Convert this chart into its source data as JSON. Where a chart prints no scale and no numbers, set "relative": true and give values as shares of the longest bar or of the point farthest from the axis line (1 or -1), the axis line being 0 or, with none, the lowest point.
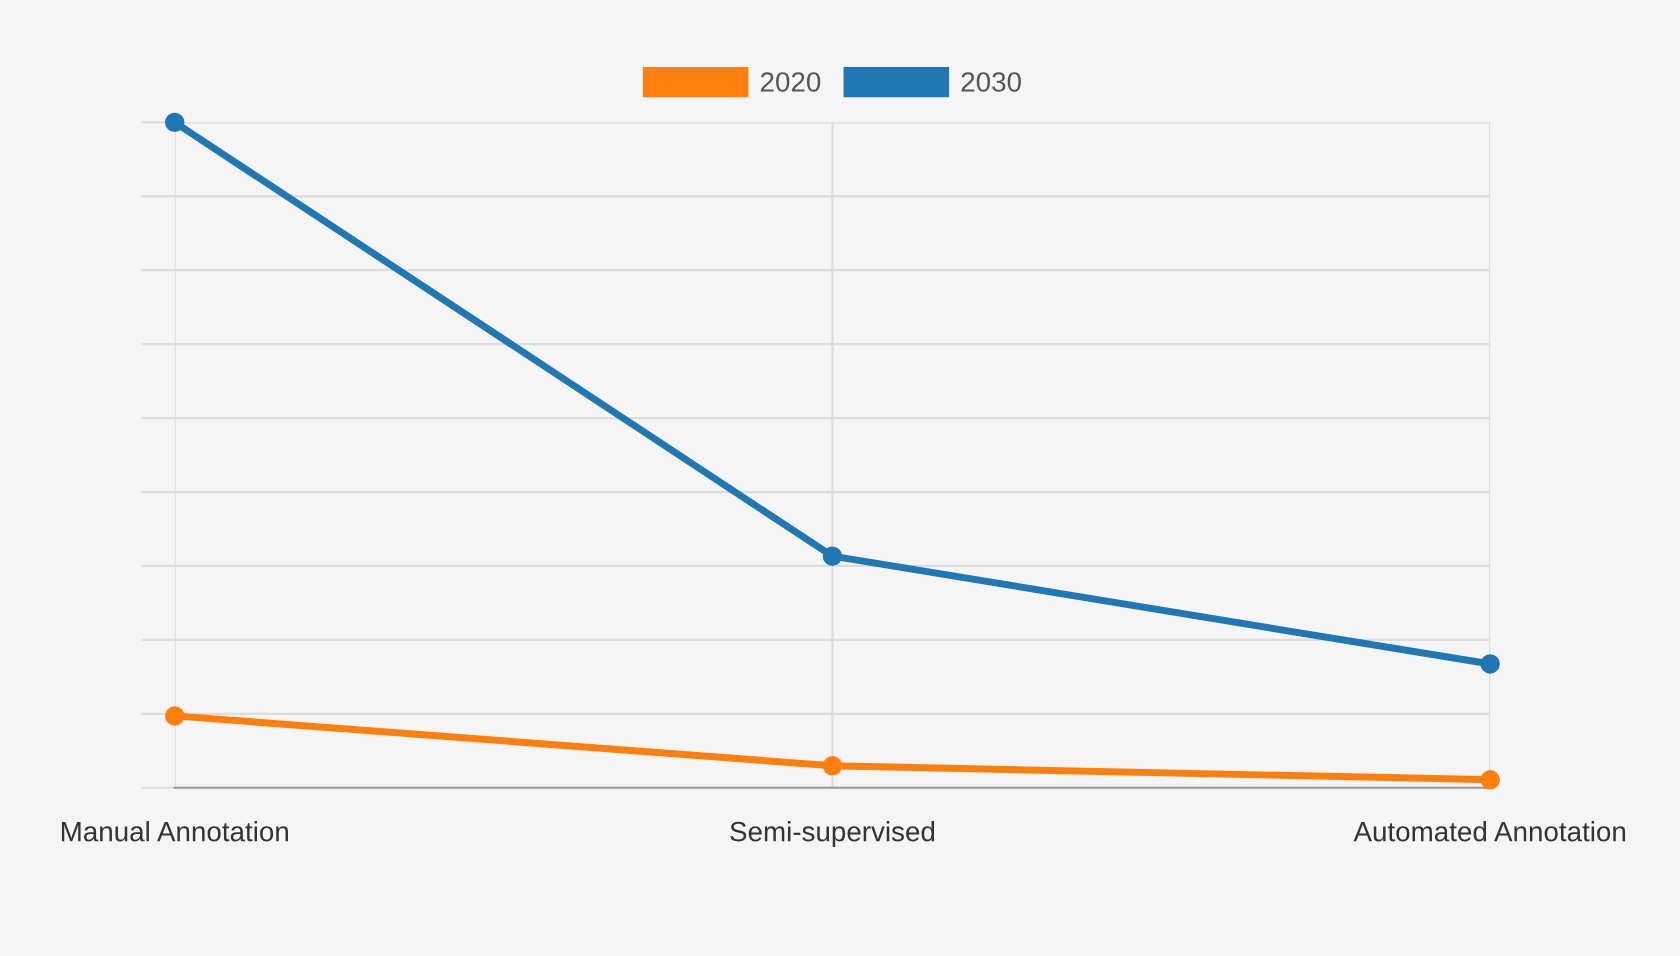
{
  "chart_data": {
    "type": "line",
    "relative": true,
    "categories": [
      "Manual Annotation",
      "Semi-supervised",
      "Automated Annotation"
    ],
    "series": [
      {
        "name": "2020",
        "color": "#ff7f0e",
        "values": [
          0.108,
          0.033,
          0.012
        ]
      },
      {
        "name": "2030",
        "color": "#1f77b4",
        "values": [
          1.0,
          0.348,
          0.186
        ]
      }
    ],
    "grid": true,
    "legend": "top",
    "marker": "circle",
    "line_style": "solid"
  }
}
